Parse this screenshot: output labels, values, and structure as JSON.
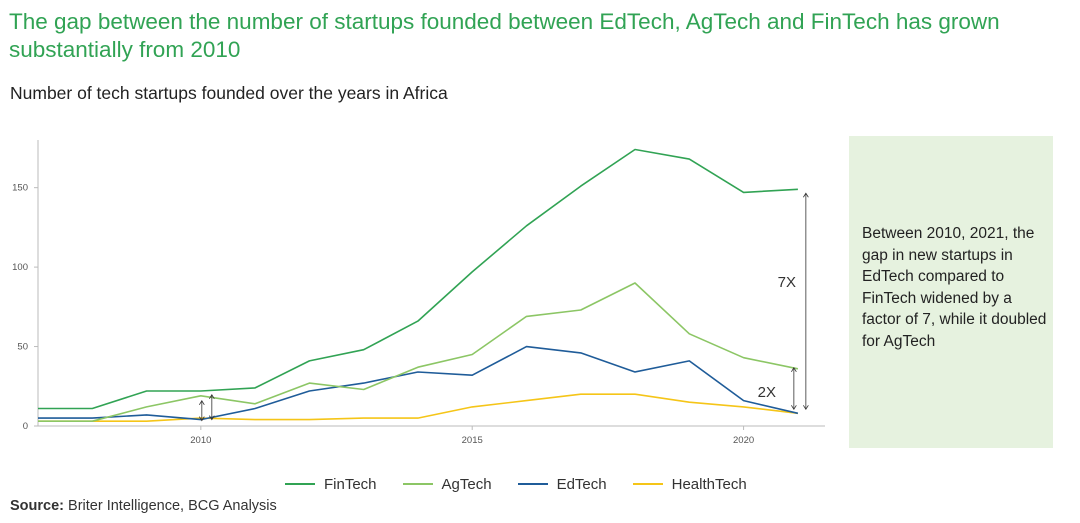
{
  "title": "The gap between the number of startups founded between EdTech, AgTech and FinTech has grown substantially from 2010",
  "subtitle": "Number of tech startups founded over the years in Africa",
  "callout": "Between 2010, 2021, the gap in new startups in EdTech compared to FinTech widened by a factor of 7, while it doubled for AgTech",
  "source": {
    "label": "Source:",
    "text": " Briter Intelligence, BCG Analysis"
  },
  "chart_data": {
    "type": "line",
    "x": [
      2007,
      2008,
      2009,
      2010,
      2011,
      2012,
      2013,
      2014,
      2015,
      2016,
      2017,
      2018,
      2019,
      2020,
      2021
    ],
    "xlim": [
      2007,
      2021.5
    ],
    "ylim": [
      0,
      180
    ],
    "yticks": [
      0,
      50,
      100,
      150
    ],
    "xticks": [
      2010,
      2015,
      2020
    ],
    "grid": false,
    "legend_position": "bottom",
    "series": [
      {
        "name": "FinTech",
        "color": "#31a354",
        "values": [
          11,
          11,
          22,
          22,
          24,
          41,
          48,
          66,
          97,
          126,
          151,
          174,
          168,
          147,
          149
        ]
      },
      {
        "name": "AgTech",
        "color": "#8cc665",
        "values": [
          3,
          3,
          12,
          19,
          14,
          27,
          23,
          37,
          45,
          69,
          73,
          90,
          58,
          43,
          36
        ]
      },
      {
        "name": "EdTech",
        "color": "#1f5c99",
        "values": [
          5,
          5,
          7,
          4,
          11,
          22,
          27,
          34,
          32,
          50,
          46,
          34,
          41,
          16,
          8
        ]
      },
      {
        "name": "HealthTech",
        "color": "#f5c518",
        "values": [
          3,
          3,
          3,
          5,
          4,
          4,
          5,
          5,
          12,
          16,
          20,
          20,
          15,
          12,
          8
        ]
      }
    ],
    "annotations": [
      {
        "text": "7X",
        "x": 2021,
        "from": 8,
        "to": 149
      },
      {
        "text": "2X",
        "x": 2021,
        "from": 8,
        "to": 36
      },
      {
        "text": "",
        "x": 2010,
        "from": 4,
        "to": 19
      }
    ]
  }
}
